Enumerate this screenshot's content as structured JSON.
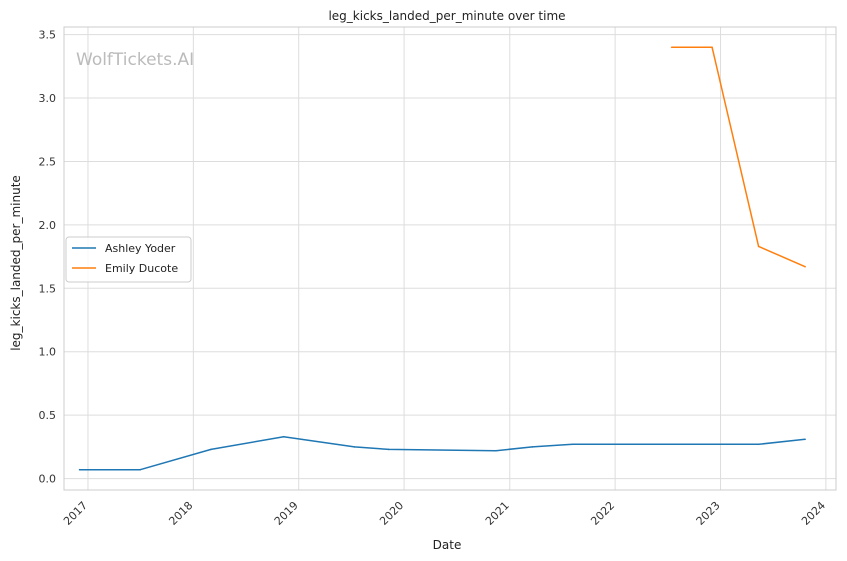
{
  "chart_data": {
    "type": "line",
    "title": "leg_kicks_landed_per_minute over time",
    "xlabel": "Date",
    "ylabel": "leg_kicks_landed_per_minute",
    "watermark": "WolfTickets.AI",
    "xlim": [
      "2016-10-10",
      "2024-02-05"
    ],
    "ylim": [
      -0.09,
      3.56
    ],
    "x_ticks": [
      "2017",
      "2018",
      "2019",
      "2020",
      "2021",
      "2022",
      "2023",
      "2024"
    ],
    "y_ticks": [
      "0.0",
      "0.5",
      "1.0",
      "1.5",
      "2.0",
      "2.5",
      "3.0",
      "3.5"
    ],
    "grid": true,
    "legend_position": "center-left",
    "series": [
      {
        "name": "Ashley Yoder",
        "color": "#1f77b4",
        "points": [
          [
            "2016-12-03",
            0.07
          ],
          [
            "2017-07-01",
            0.07
          ],
          [
            "2018-03-03",
            0.23
          ],
          [
            "2018-11-10",
            0.33
          ],
          [
            "2019-07-13",
            0.25
          ],
          [
            "2019-11-09",
            0.23
          ],
          [
            "2020-11-14",
            0.22
          ],
          [
            "2021-03-20",
            0.25
          ],
          [
            "2021-08-07",
            0.27
          ],
          [
            "2023-05-13",
            0.27
          ],
          [
            "2023-10-21",
            0.31
          ]
        ]
      },
      {
        "name": "Emily Ducote",
        "color": "#ff7f0e",
        "points": [
          [
            "2022-07-16",
            3.4
          ],
          [
            "2022-12-03",
            3.4
          ],
          [
            "2023-05-13",
            1.83
          ],
          [
            "2023-10-21",
            1.67
          ]
        ]
      }
    ]
  }
}
